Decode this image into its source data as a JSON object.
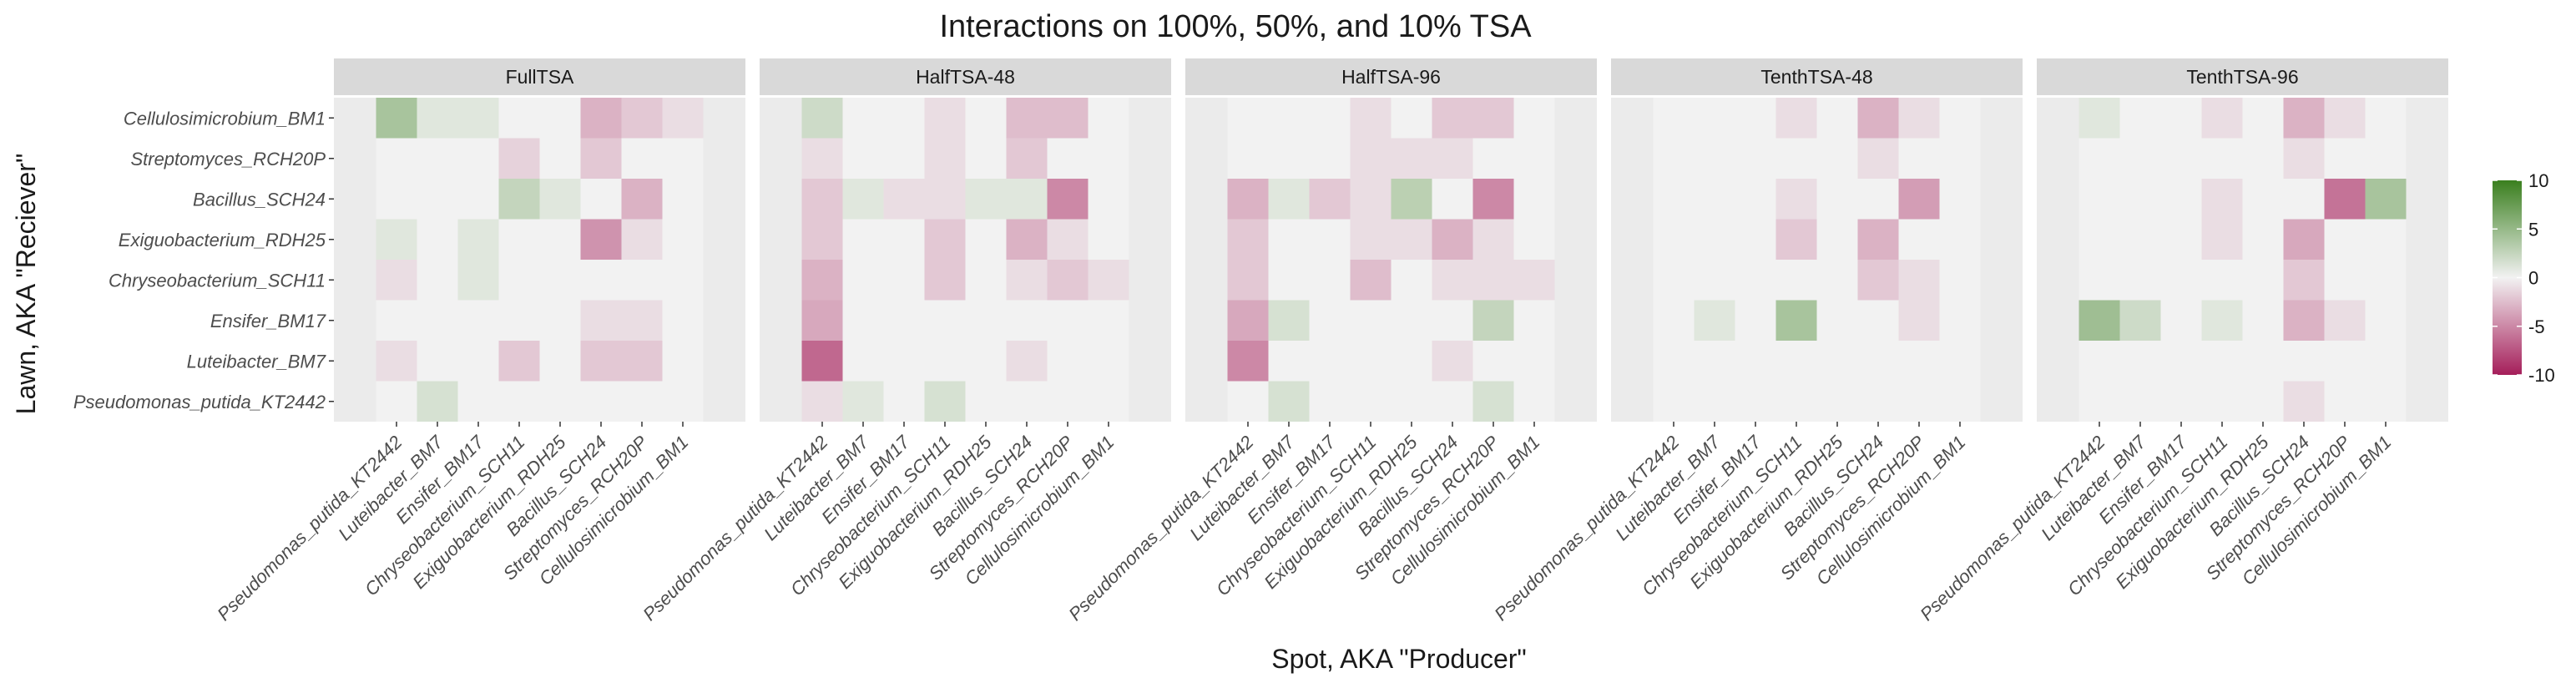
{
  "chart_data": {
    "type": "heatmap",
    "title": "Interactions on 100%, 50%, and 10% TSA",
    "xlabel": "Spot, AKA \"Producer\"",
    "ylabel": "Lawn, AKA \"Reciever\"",
    "x_categories": [
      "Pseudomonas_putida_KT2442",
      "Luteibacter_BM7",
      "Ensifer_BM17",
      "Chryseobacterium_SCH11",
      "Exiguobacterium_RDH25",
      "Bacillus_SCH24",
      "Streptomyces_RCH20P",
      "Cellulosimicrobium_BM1"
    ],
    "y_categories": [
      "Cellulosimicrobium_BM1",
      "Streptomyces_RCH20P",
      "Bacillus_SCH24",
      "Exiguobacterium_RDH25",
      "Chryseobacterium_SCH11",
      "Ensifer_BM17",
      "Luteibacter_BM7",
      "Pseudomonas_putida_KT2442"
    ],
    "panels": [
      {
        "name": "FullTSA",
        "values": [
          [
            4,
            1,
            1,
            0,
            0,
            -3,
            -2,
            -1
          ],
          [
            0,
            0,
            0,
            -1.5,
            0,
            -2,
            0,
            0
          ],
          [
            0,
            0,
            0,
            2.5,
            1,
            0,
            -3,
            0
          ],
          [
            1,
            0,
            1,
            0,
            0,
            -4.5,
            -1,
            0
          ],
          [
            -1,
            0,
            1,
            0,
            0,
            0,
            0,
            0
          ],
          [
            0,
            0,
            0,
            0,
            0,
            -1,
            -1,
            0
          ],
          [
            -1,
            0,
            0,
            -2,
            0,
            -2,
            -2,
            0
          ],
          [
            0,
            1.5,
            0,
            0,
            0,
            0,
            0,
            0
          ]
        ]
      },
      {
        "name": "HalfTSA-48",
        "values": [
          [
            2,
            0,
            0,
            -1,
            0,
            -2.5,
            -2.5,
            0
          ],
          [
            -1,
            0,
            0,
            -1,
            0,
            -2,
            0,
            0
          ],
          [
            -2,
            1,
            -1,
            -1,
            1,
            1,
            -5,
            0
          ],
          [
            -2,
            0,
            0,
            -2,
            0,
            -3,
            -1,
            0
          ],
          [
            -3,
            0,
            0,
            -2,
            0,
            -1,
            -2,
            -1
          ],
          [
            -3.5,
            0,
            0,
            0,
            0,
            0,
            0,
            0
          ],
          [
            -6.5,
            0,
            0,
            0,
            0,
            -1,
            0,
            0
          ],
          [
            -1,
            1,
            0,
            1.5,
            0,
            0,
            0,
            0
          ]
        ]
      },
      {
        "name": "HalfTSA-96",
        "values": [
          [
            0,
            0,
            0,
            -1,
            0,
            -2,
            -2,
            0
          ],
          [
            0,
            0,
            0,
            -1,
            -1,
            -1,
            0,
            0
          ],
          [
            -3,
            1,
            -2,
            -1,
            3,
            0,
            -5,
            0
          ],
          [
            -2,
            0,
            0,
            -1,
            -1,
            -3,
            -1,
            0
          ],
          [
            -2,
            0,
            0,
            -2.5,
            0,
            -1,
            -1,
            -1
          ],
          [
            -3.5,
            1.5,
            0,
            0,
            0,
            0,
            2.5,
            0
          ],
          [
            -5,
            0,
            0,
            0,
            0,
            -1,
            0,
            0
          ],
          [
            0,
            1.5,
            0,
            0,
            0,
            0,
            1.5,
            0
          ]
        ]
      },
      {
        "name": "TenthTSA-48",
        "values": [
          [
            0,
            0,
            0,
            -1,
            0,
            -3,
            -1,
            0
          ],
          [
            0,
            0,
            0,
            0,
            0,
            -1,
            0,
            0
          ],
          [
            0,
            0,
            0,
            -1,
            0,
            0,
            -4,
            0
          ],
          [
            0,
            0,
            0,
            -2,
            0,
            -3,
            0,
            0
          ],
          [
            0,
            0,
            0,
            0,
            0,
            -2,
            -1,
            0
          ],
          [
            0,
            1,
            0,
            4,
            0,
            0,
            -1,
            0
          ],
          [
            0,
            0,
            0,
            0,
            0,
            0,
            0,
            0
          ],
          [
            0,
            0,
            0,
            0,
            0,
            0,
            0,
            0
          ]
        ]
      },
      {
        "name": "TenthTSA-96",
        "values": [
          [
            1,
            0,
            0,
            -1,
            0,
            -3,
            -1,
            0
          ],
          [
            0,
            0,
            0,
            0,
            0,
            -1,
            0,
            0
          ],
          [
            0,
            0,
            0,
            -1,
            0,
            0,
            -6,
            4
          ],
          [
            0,
            0,
            0,
            -1,
            0,
            -3.5,
            0,
            0
          ],
          [
            0,
            0,
            0,
            0,
            0,
            -2,
            0,
            0
          ],
          [
            4.5,
            2,
            0,
            1,
            0,
            -3,
            -1,
            0
          ],
          [
            0,
            0,
            0,
            0,
            0,
            0,
            0,
            0
          ],
          [
            0,
            0,
            0,
            0,
            0,
            -1,
            0,
            0
          ]
        ]
      }
    ],
    "color_scale": {
      "min": -10,
      "mid": 0,
      "max": 10,
      "low": "#a51e5a",
      "midcolor": "#f2f2f2",
      "high": "#3a7f1e"
    },
    "legend": {
      "ticks": [
        "10",
        "5",
        "0",
        "-5",
        "-10"
      ],
      "tick_values": [
        10,
        5,
        0,
        -5,
        -10
      ],
      "placement": "right"
    },
    "grid": true
  }
}
